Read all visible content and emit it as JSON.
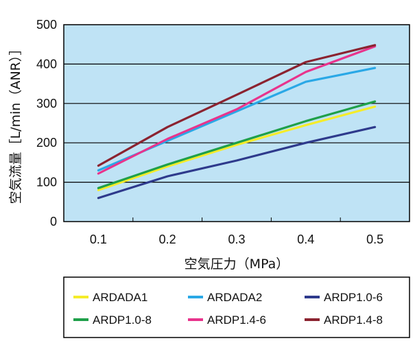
{
  "chart_data": {
    "type": "line",
    "xlabel": "空気圧力（MPa）",
    "ylabel": "空気流量［L/min（ANR）］",
    "x": [
      0.1,
      0.2,
      0.3,
      0.4,
      0.5
    ],
    "x_tick_labels": [
      "0.1",
      "0.2",
      "0.3",
      "0.4",
      "0.5"
    ],
    "ylim": [
      0,
      500
    ],
    "y_ticks": [
      0,
      100,
      200,
      300,
      400,
      500
    ],
    "y_tick_labels": [
      "0",
      "100",
      "200",
      "300",
      "400",
      "500"
    ],
    "grid": "horizontal",
    "legend_position": "bottom",
    "colors": {
      "plot_background": "#bfe3f5"
    },
    "series": [
      {
        "name": "ARDADA1",
        "color": "#f5ec2a",
        "values": [
          80,
          140,
          195,
          245,
          292
        ]
      },
      {
        "name": "ARDADA2",
        "color": "#2aa8e6",
        "values": [
          130,
          205,
          280,
          355,
          390
        ]
      },
      {
        "name": "ARDP1.0-6",
        "color": "#2e3a8c",
        "values": [
          60,
          115,
          155,
          200,
          240
        ]
      },
      {
        "name": "ARDP1.0-8",
        "color": "#1fa04a",
        "values": [
          85,
          145,
          200,
          255,
          305
        ]
      },
      {
        "name": "ARDP1.4-6",
        "color": "#e8348c",
        "values": [
          122,
          210,
          285,
          380,
          445
        ]
      },
      {
        "name": "ARDP1.4-8",
        "color": "#8b2330",
        "values": [
          142,
          240,
          322,
          405,
          448
        ]
      }
    ]
  }
}
